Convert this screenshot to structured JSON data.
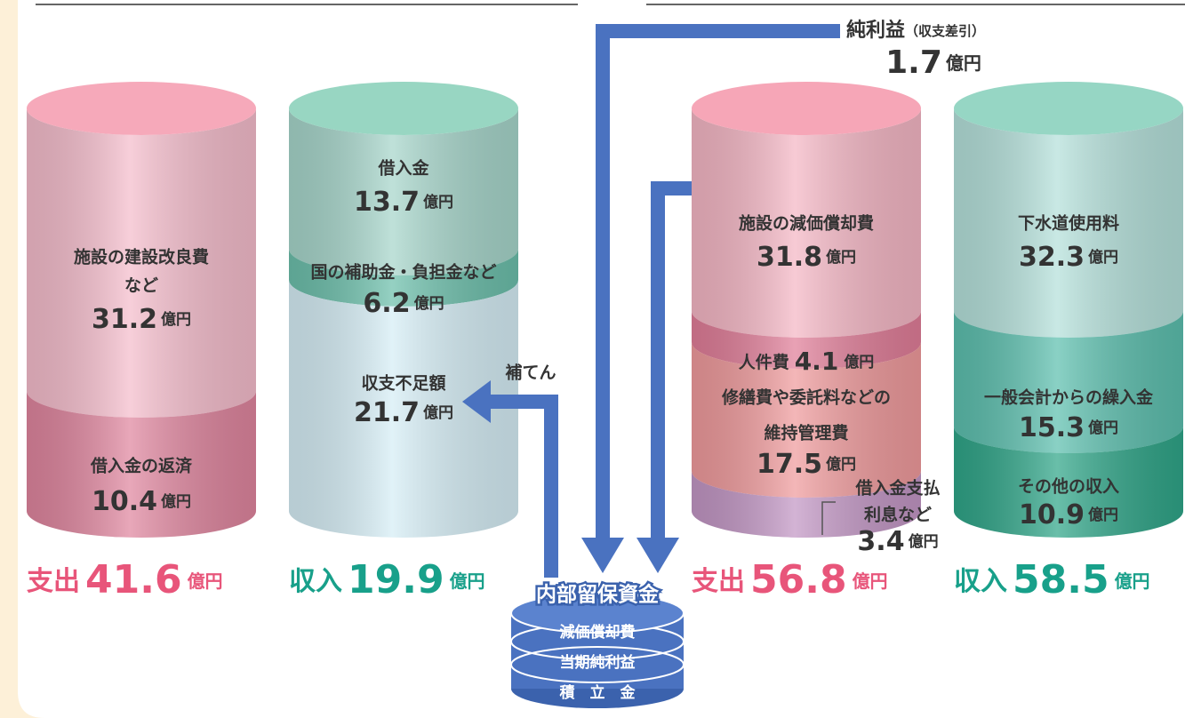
{
  "net_profit": {
    "label": "純利益",
    "note": "（収支差引）",
    "value": 1.7,
    "unit": "億円"
  },
  "cylinders": [
    {
      "segments": [
        {
          "lines": [
            "施設の建設改良費",
            "など"
          ],
          "value": 31.2,
          "unit": "億円"
        },
        {
          "lines": [
            "借入金の返済"
          ],
          "value": 10.4,
          "unit": "億円"
        }
      ],
      "total": {
        "label": "支出",
        "value": 41.6,
        "unit": "億円"
      }
    },
    {
      "segments": [
        {
          "lines": [
            "借入金"
          ],
          "value": 13.7,
          "unit": "億円"
        },
        {
          "lines": [
            "国の補助金・負担金など"
          ],
          "value": 6.2,
          "unit": "億円"
        },
        {
          "lines": [
            "収支不足額"
          ],
          "value": 21.7,
          "unit": "億円"
        }
      ],
      "total": {
        "label": "収入",
        "value": 19.9,
        "unit": "億円"
      }
    },
    {
      "segments": [
        {
          "lines": [
            "施設の減価償却費"
          ],
          "value": 31.8,
          "unit": "億円"
        },
        {
          "lines": [
            "人件費"
          ],
          "value": 4.1,
          "unit": "億円"
        },
        {
          "lines": [
            "修繕費や委託料などの",
            "維持管理費"
          ],
          "value": 17.5,
          "unit": "億円"
        },
        {
          "lines": [
            "借入金支払",
            "利息など"
          ],
          "value": 3.4,
          "unit": "億円"
        }
      ],
      "total": {
        "label": "支出",
        "value": 56.8,
        "unit": "億円"
      }
    },
    {
      "segments": [
        {
          "lines": [
            "下水道使用料"
          ],
          "value": 32.3,
          "unit": "億円"
        },
        {
          "lines": [
            "一般会計からの繰入金"
          ],
          "value": 15.3,
          "unit": "億円"
        },
        {
          "lines": [
            "その他の収入"
          ],
          "value": 10.9,
          "unit": "億円"
        }
      ],
      "total": {
        "label": "収入",
        "value": 58.5,
        "unit": "億円"
      }
    }
  ],
  "supplement": "補てん",
  "reserve": {
    "title": "内部留保資金",
    "items": [
      "減価償却費",
      "当期純利益",
      "積　立　金"
    ]
  }
}
